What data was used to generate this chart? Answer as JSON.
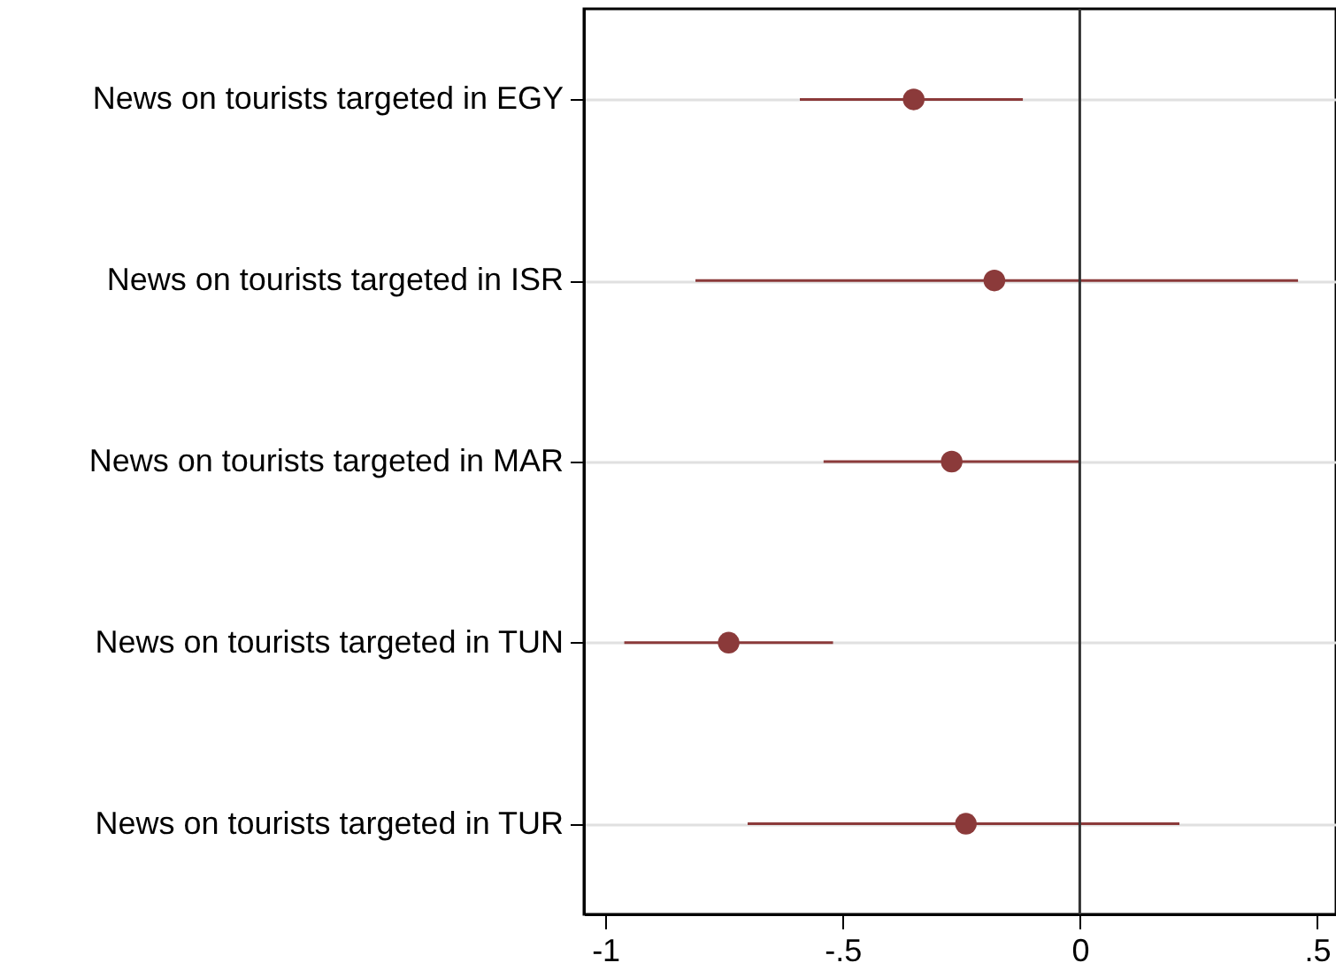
{
  "chart_data": {
    "type": "scatter",
    "orientation": "horizontal",
    "categories": [
      "News on tourists targeted in EGY",
      "News on tourists targeted in ISR",
      "News on tourists targeted in MAR",
      "News on tourists targeted in TUN",
      "News on tourists targeted in TUR"
    ],
    "values": [
      -0.35,
      -0.18,
      -0.27,
      -0.74,
      -0.24
    ],
    "errors": [
      [
        -0.59,
        -0.12
      ],
      [
        -0.81,
        0.46
      ],
      [
        -0.54,
        0.0
      ],
      [
        -0.96,
        -0.52
      ],
      [
        -0.7,
        0.21
      ]
    ],
    "color": "#8b3a3a",
    "marker": "circle",
    "xlim": [
      -1.045,
      0.54
    ],
    "xticks": [
      -1,
      {
        "value": -0.5,
        "label": "-.5"
      },
      0,
      {
        "value": 0.5,
        "label": ".5"
      }
    ],
    "grid": "y",
    "ref_lines": [
      {
        "axis": "x",
        "value": 0,
        "color": "#333333"
      }
    ]
  }
}
